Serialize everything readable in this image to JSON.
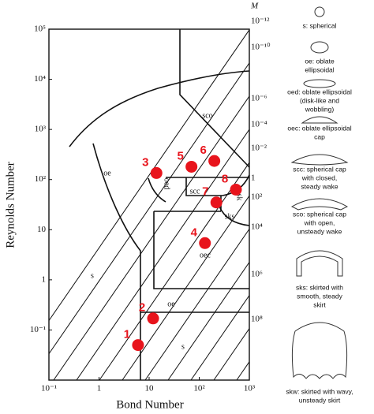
{
  "chart_data": {
    "type": "scatter",
    "x_label": "Bond Number",
    "y_label": "Reynolds Number",
    "y2_label": "M",
    "xlim": [
      0.1,
      1000
    ],
    "ylim": [
      0.01,
      100000
    ],
    "log_x": true,
    "log_y": true,
    "xticks": [
      {
        "value": 0.1,
        "label": "10⁻¹"
      },
      1,
      10,
      {
        "value": 100,
        "label": "10²"
      },
      {
        "value": 1000,
        "label": "10³"
      }
    ],
    "yticks": [
      {
        "value": 0.1,
        "label": "10⁻¹"
      },
      1,
      10,
      {
        "value": 100,
        "label": "10²"
      },
      {
        "value": 1000,
        "label": "10³"
      },
      {
        "value": 10000,
        "label": "10⁴"
      },
      {
        "value": 100000,
        "label": "10⁵"
      }
    ],
    "m_labels": [
      "10⁻¹²",
      "10⁻¹⁰",
      "10⁻⁶",
      "10⁻⁴",
      "10⁻²",
      "1",
      "10²",
      "10⁴",
      "10⁶",
      "10⁸"
    ],
    "color": "#e8141c",
    "x": [
      6,
      12,
      14,
      130,
      70,
      200,
      220,
      540
    ],
    "values": [
      0.05,
      0.17,
      135,
      5.4,
      180,
      235,
      35,
      63
    ],
    "point_labels": [
      "1",
      "2",
      "3",
      "4",
      "5",
      "6",
      "7",
      "8"
    ],
    "regions": [
      "sco",
      "oe",
      "oed",
      "scc",
      "sk",
      "sks",
      "s",
      "oe",
      "oec",
      "s"
    ],
    "legend": [
      [
        "s: spherical"
      ],
      [
        "oe: oblate",
        "ellipsoidal"
      ],
      [
        "oed: oblate ellipsoidal",
        "(disk-like and",
        "wobbling)"
      ],
      [
        "oec: oblate ellipsoidal",
        "cap"
      ],
      [
        "scc: spherical cap",
        "with closed,",
        "steady wake"
      ],
      [
        "sco: spherical cap",
        "with open,",
        "unsteady wake"
      ],
      [
        "sks: skirted with",
        "smooth, steady",
        "skirt"
      ],
      [
        "skw: skirted with wavy,",
        "unsteady skirt"
      ]
    ]
  }
}
